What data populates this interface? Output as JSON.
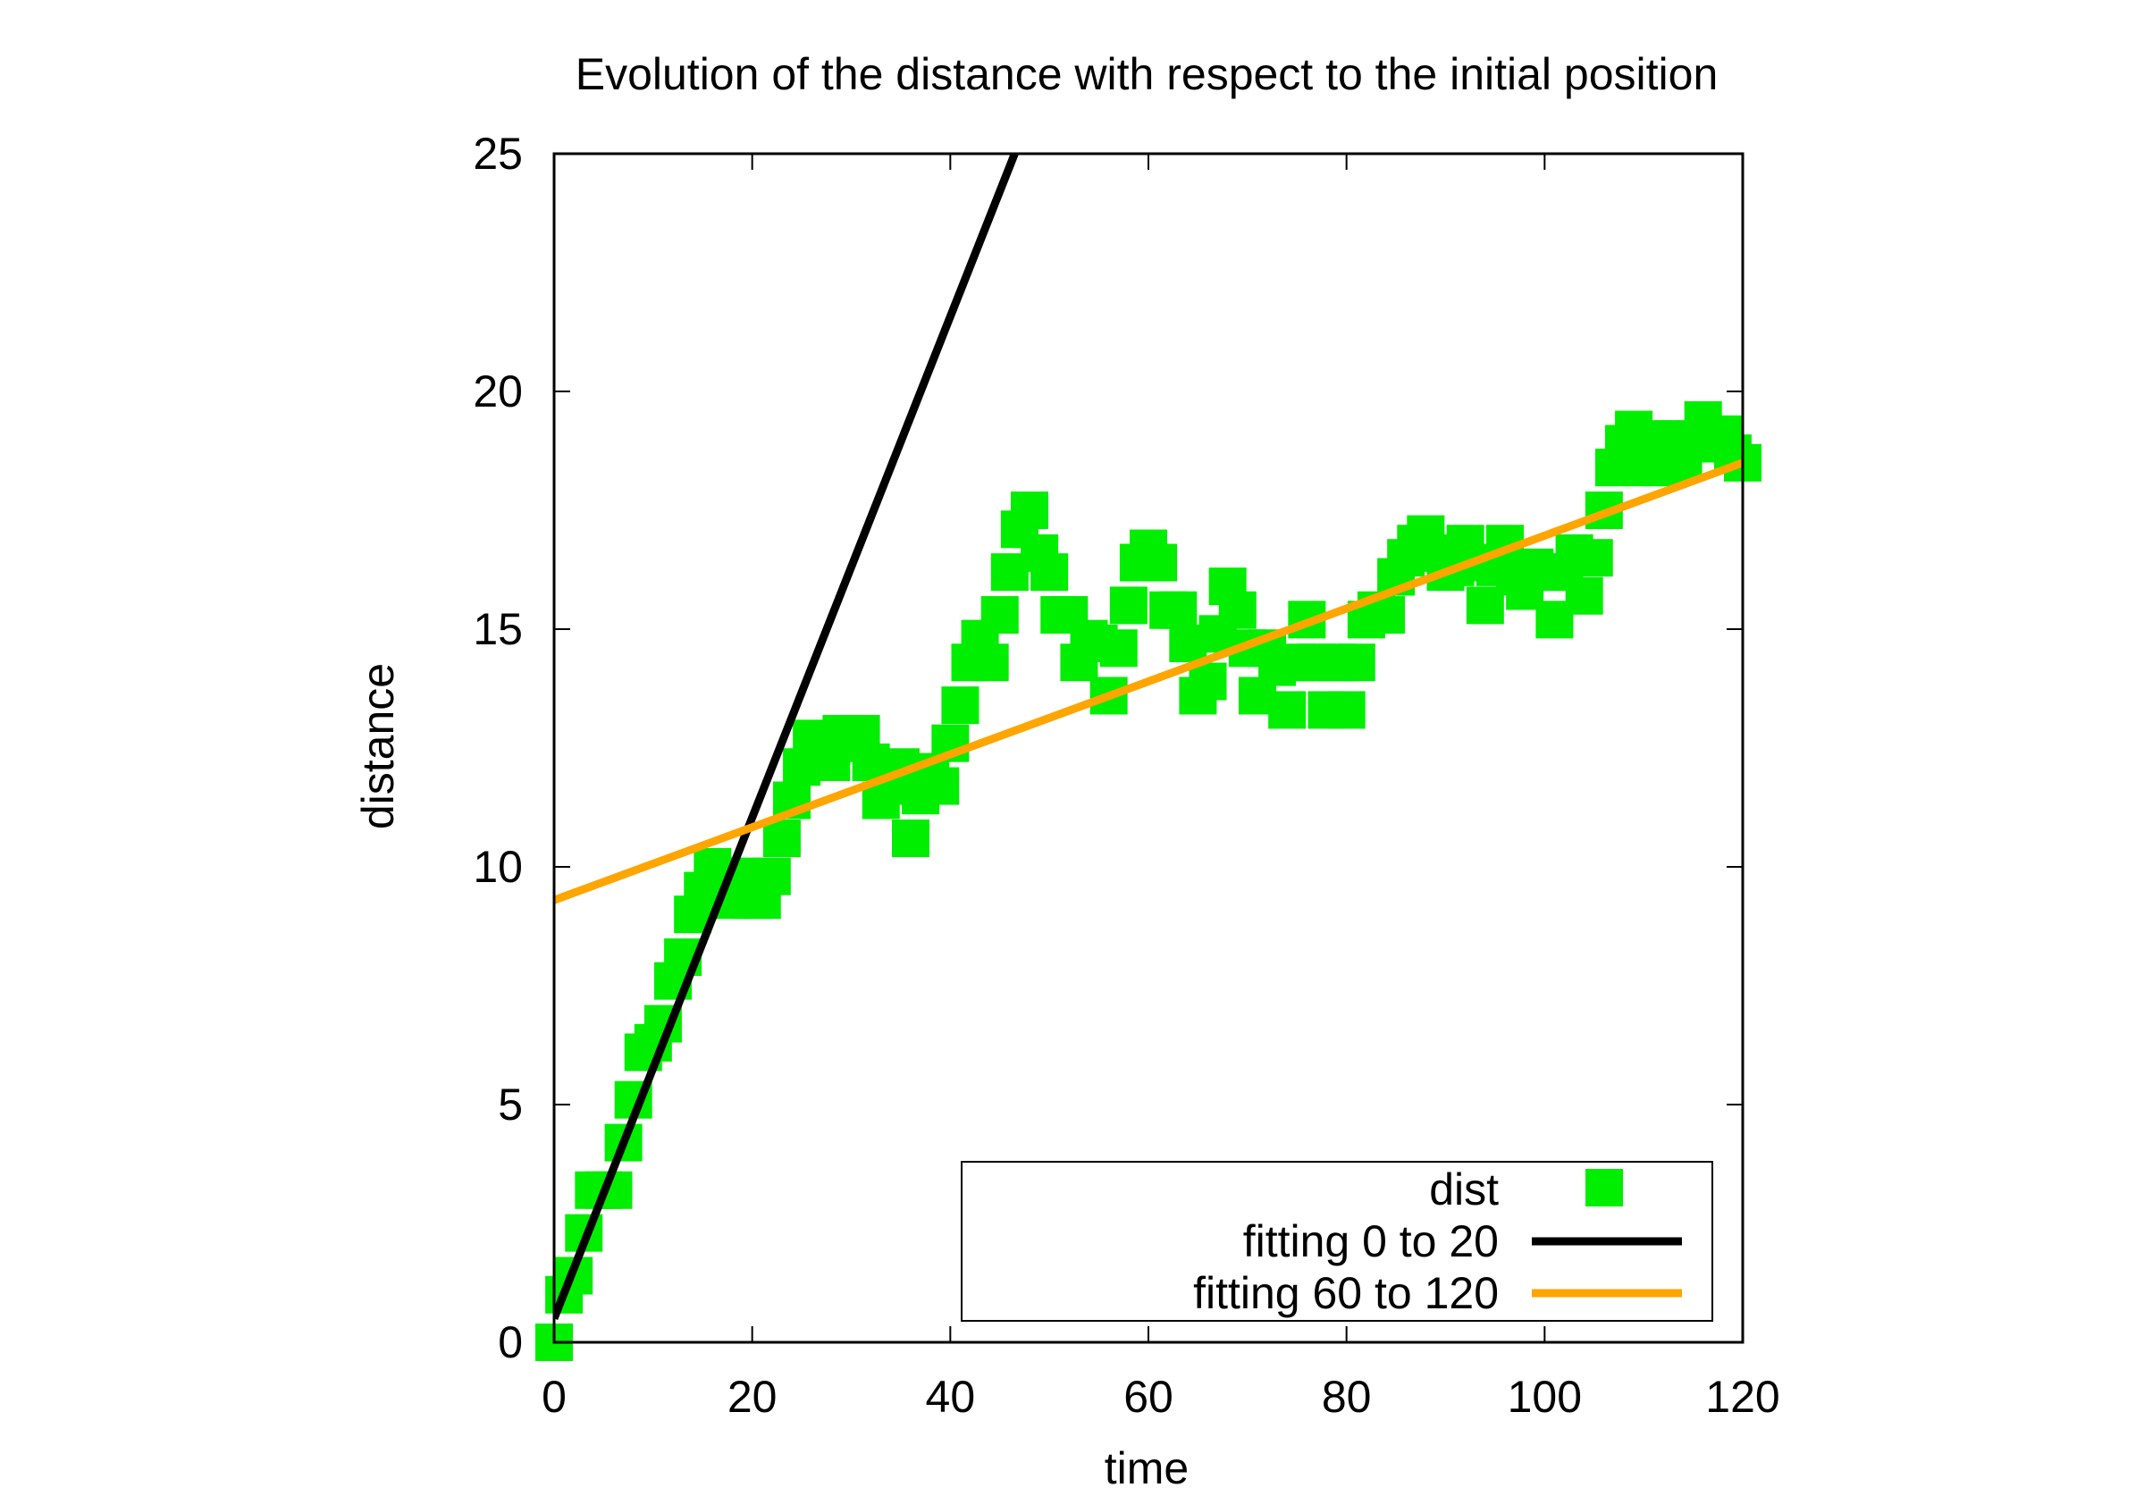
{
  "chart_data": {
    "type": "scatter",
    "title": "Evolution of the distance with respect to the initial position",
    "xlabel": "time",
    "ylabel": "distance",
    "xlim": [
      0,
      120
    ],
    "ylim": [
      0,
      25
    ],
    "xticks": [
      "0",
      "20",
      "40",
      "60",
      "80",
      "100",
      "120"
    ],
    "yticks": [
      "0",
      "5",
      "10",
      "15",
      "20",
      "25"
    ],
    "grid": false,
    "legend_position": "bottom-right",
    "series": [
      {
        "name": "dist",
        "kind": "points",
        "marker": "square",
        "color": "#00ee00",
        "x": [
          0,
          1,
          2,
          3,
          4,
          5,
          6,
          7,
          8,
          9,
          10,
          11,
          12,
          13,
          14,
          15,
          16,
          17,
          18,
          19,
          20,
          21,
          22,
          23,
          24,
          25,
          26,
          27,
          28,
          29,
          30,
          31,
          32,
          33,
          34,
          35,
          36,
          37,
          38,
          39,
          40,
          41,
          42,
          43,
          44,
          45,
          46,
          47,
          48,
          49,
          50,
          51,
          52,
          53,
          54,
          55,
          56,
          57,
          58,
          59,
          60,
          61,
          62,
          63,
          64,
          65,
          66,
          67,
          68,
          69,
          70,
          71,
          72,
          73,
          74,
          75,
          76,
          77,
          78,
          79,
          80,
          81,
          82,
          83,
          84,
          85,
          86,
          87,
          88,
          89,
          90,
          91,
          92,
          93,
          94,
          95,
          96,
          97,
          98,
          99,
          100,
          101,
          102,
          103,
          104,
          105,
          106,
          107,
          108,
          109,
          110,
          111,
          112,
          113,
          114,
          115,
          116,
          117,
          118,
          119,
          120
        ],
        "y": [
          0,
          1.0,
          1.4,
          2.3,
          3.2,
          3.2,
          3.2,
          4.2,
          5.1,
          6.1,
          6.3,
          6.7,
          7.6,
          8.1,
          9.0,
          9.5,
          10.0,
          9.8,
          9.3,
          9.8,
          9.3,
          9.3,
          9.8,
          10.6,
          11.4,
          12.1,
          12.7,
          12.6,
          12.2,
          12.8,
          12.6,
          12.8,
          12.2,
          11.4,
          11.7,
          12.1,
          10.6,
          11.5,
          12.0,
          11.7,
          12.6,
          13.4,
          14.3,
          14.8,
          14.3,
          15.3,
          16.2,
          17.1,
          17.5,
          16.6,
          16.2,
          15.3,
          15.3,
          14.3,
          14.8,
          14.7,
          13.6,
          14.6,
          15.5,
          16.4,
          16.7,
          16.4,
          15.4,
          15.4,
          14.7,
          13.6,
          13.9,
          14.9,
          15.9,
          15.4,
          14.6,
          13.6,
          14.6,
          14.2,
          13.3,
          14.3,
          15.2,
          14.3,
          13.3,
          14.3,
          13.3,
          14.3,
          15.2,
          15.4,
          15.3,
          16.1,
          16.5,
          16.8,
          17.0,
          16.6,
          16.2,
          16.3,
          16.8,
          16.4,
          15.5,
          16.3,
          16.8,
          16.1,
          15.8,
          16.3,
          16.2,
          15.2,
          16.2,
          16.6,
          15.7,
          16.5,
          17.5,
          18.4,
          18.9,
          19.2,
          18.4,
          19.0,
          18.4,
          19.0,
          18.5,
          19.0,
          19.4,
          18.9,
          19.1,
          18.7,
          18.5
        ]
      },
      {
        "name": "fitting 0 to 20",
        "kind": "line",
        "color": "#000000",
        "x": [
          0,
          46.5
        ],
        "y": [
          0.5,
          25
        ]
      },
      {
        "name": "fitting 60 to 120",
        "kind": "line",
        "color": "#ffa500",
        "x": [
          0,
          120
        ],
        "y": [
          9.3,
          18.5
        ]
      }
    ]
  }
}
